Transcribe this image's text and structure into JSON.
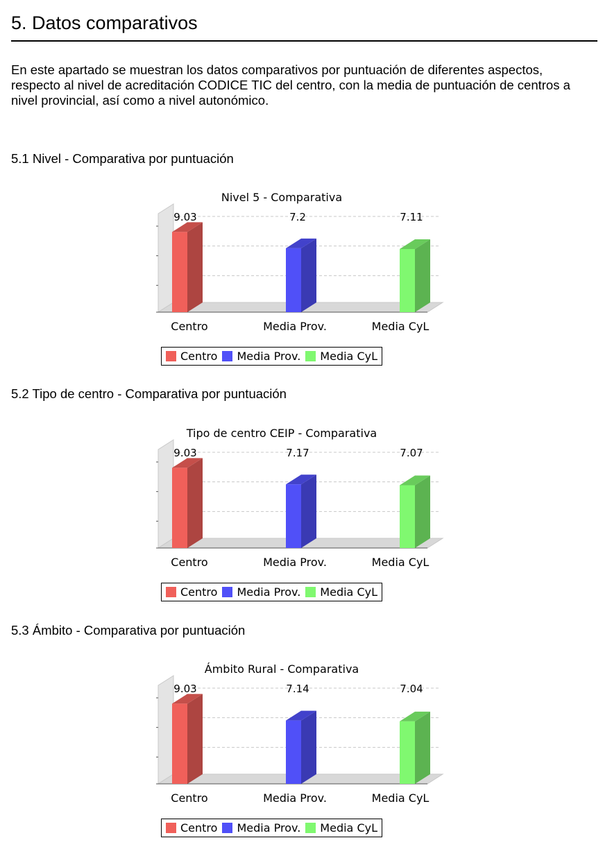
{
  "page": {
    "title": "5. Datos comparativos",
    "intro": "En este apartado se muestran los datos comparativos por puntuación de diferentes aspectos, respecto al nivel de acreditación CODICE TIC del centro, con la media de puntuación de centros a nivel provincial, así como a nivel autonómico."
  },
  "sections": [
    {
      "heading": "5.1 Nivel - Comparativa por puntuación"
    },
    {
      "heading": "5.2 Tipo de centro - Comparativa por puntuación"
    },
    {
      "heading": "5.3 Ámbito - Comparativa por puntuación"
    }
  ],
  "chart_data": [
    {
      "type": "bar",
      "title": "Nivel 5 - Comparativa",
      "categories": [
        "Centro",
        "Media Prov.",
        "Media CyL"
      ],
      "values": [
        9.03,
        7.2,
        7.11
      ],
      "data_labels": [
        "9.03",
        "7.2",
        "7.11"
      ],
      "colors": [
        "#f0605a",
        "#5050f8",
        "#80f870"
      ],
      "ylim": [
        0,
        10
      ],
      "grid": true,
      "legend": [
        "Centro",
        "Media Prov.",
        "Media CyL"
      ],
      "legend_position": "bottom"
    },
    {
      "type": "bar",
      "title": "Tipo de centro CEIP - Comparativa",
      "categories": [
        "Centro",
        "Media Prov.",
        "Media CyL"
      ],
      "values": [
        9.03,
        7.17,
        7.07
      ],
      "data_labels": [
        "9.03",
        "7.17",
        "7.07"
      ],
      "colors": [
        "#f0605a",
        "#5050f8",
        "#80f870"
      ],
      "ylim": [
        0,
        10
      ],
      "grid": true,
      "legend": [
        "Centro",
        "Media Prov.",
        "Media CyL"
      ],
      "legend_position": "bottom"
    },
    {
      "type": "bar",
      "title": "Ámbito Rural - Comparativa",
      "categories": [
        "Centro",
        "Media Prov.",
        "Media CyL"
      ],
      "values": [
        9.03,
        7.14,
        7.04
      ],
      "data_labels": [
        "9.03",
        "7.14",
        "7.04"
      ],
      "colors": [
        "#f0605a",
        "#5050f8",
        "#80f870"
      ],
      "ylim": [
        0,
        10
      ],
      "grid": true,
      "legend": [
        "Centro",
        "Media Prov.",
        "Media CyL"
      ],
      "legend_position": "bottom"
    }
  ]
}
